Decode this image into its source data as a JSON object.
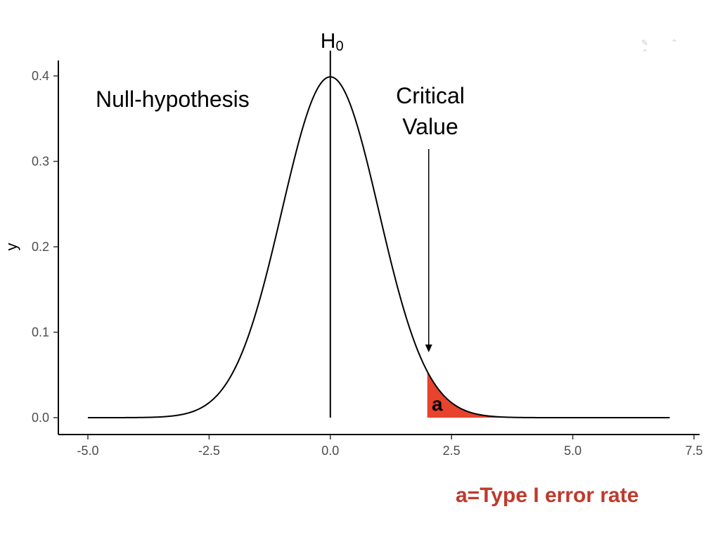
{
  "chart_data": {
    "type": "line",
    "title": "",
    "xlabel": "",
    "ylabel": "y",
    "xlim": [
      -5.3,
      7.5
    ],
    "ylim": [
      -0.02,
      0.42
    ],
    "grid": false,
    "x_ticks": [
      -5.0,
      -2.5,
      0.0,
      2.5,
      5.0,
      7.5
    ],
    "x_tick_labels": [
      "-5.0",
      "-2.5",
      "0.0",
      "2.5",
      "5.0",
      "7.5"
    ],
    "y_ticks": [
      0.0,
      0.1,
      0.2,
      0.3,
      0.4
    ],
    "y_tick_labels": [
      "0.0",
      "0.1",
      "0.2",
      "0.3",
      "0.4"
    ],
    "series": [
      {
        "name": "Null-hypothesis density",
        "distribution": "normal",
        "mean": 0,
        "sd": 1,
        "x_range": [
          -5.0,
          7.0
        ],
        "color": "#000000"
      }
    ],
    "shaded_region": {
      "label": "a",
      "x_from": 2.0,
      "x_to": 4.0,
      "color": "#e8432c"
    },
    "vertical_line": {
      "x": 0.0,
      "label": "H",
      "label_sub": "0"
    },
    "critical_value": {
      "x": 2.0,
      "arrow_from_y": 0.315,
      "arrow_to_y": 0.075,
      "label_line1": "Critical",
      "label_line2": "Value"
    },
    "annotations": {
      "null_hypothesis": "Null-hypothesis"
    }
  },
  "footer": {
    "text": "a=Type I error rate",
    "color": "#c0392b"
  },
  "decor": {
    "corner_glyphs": "✎ ⌃ ⌃"
  }
}
